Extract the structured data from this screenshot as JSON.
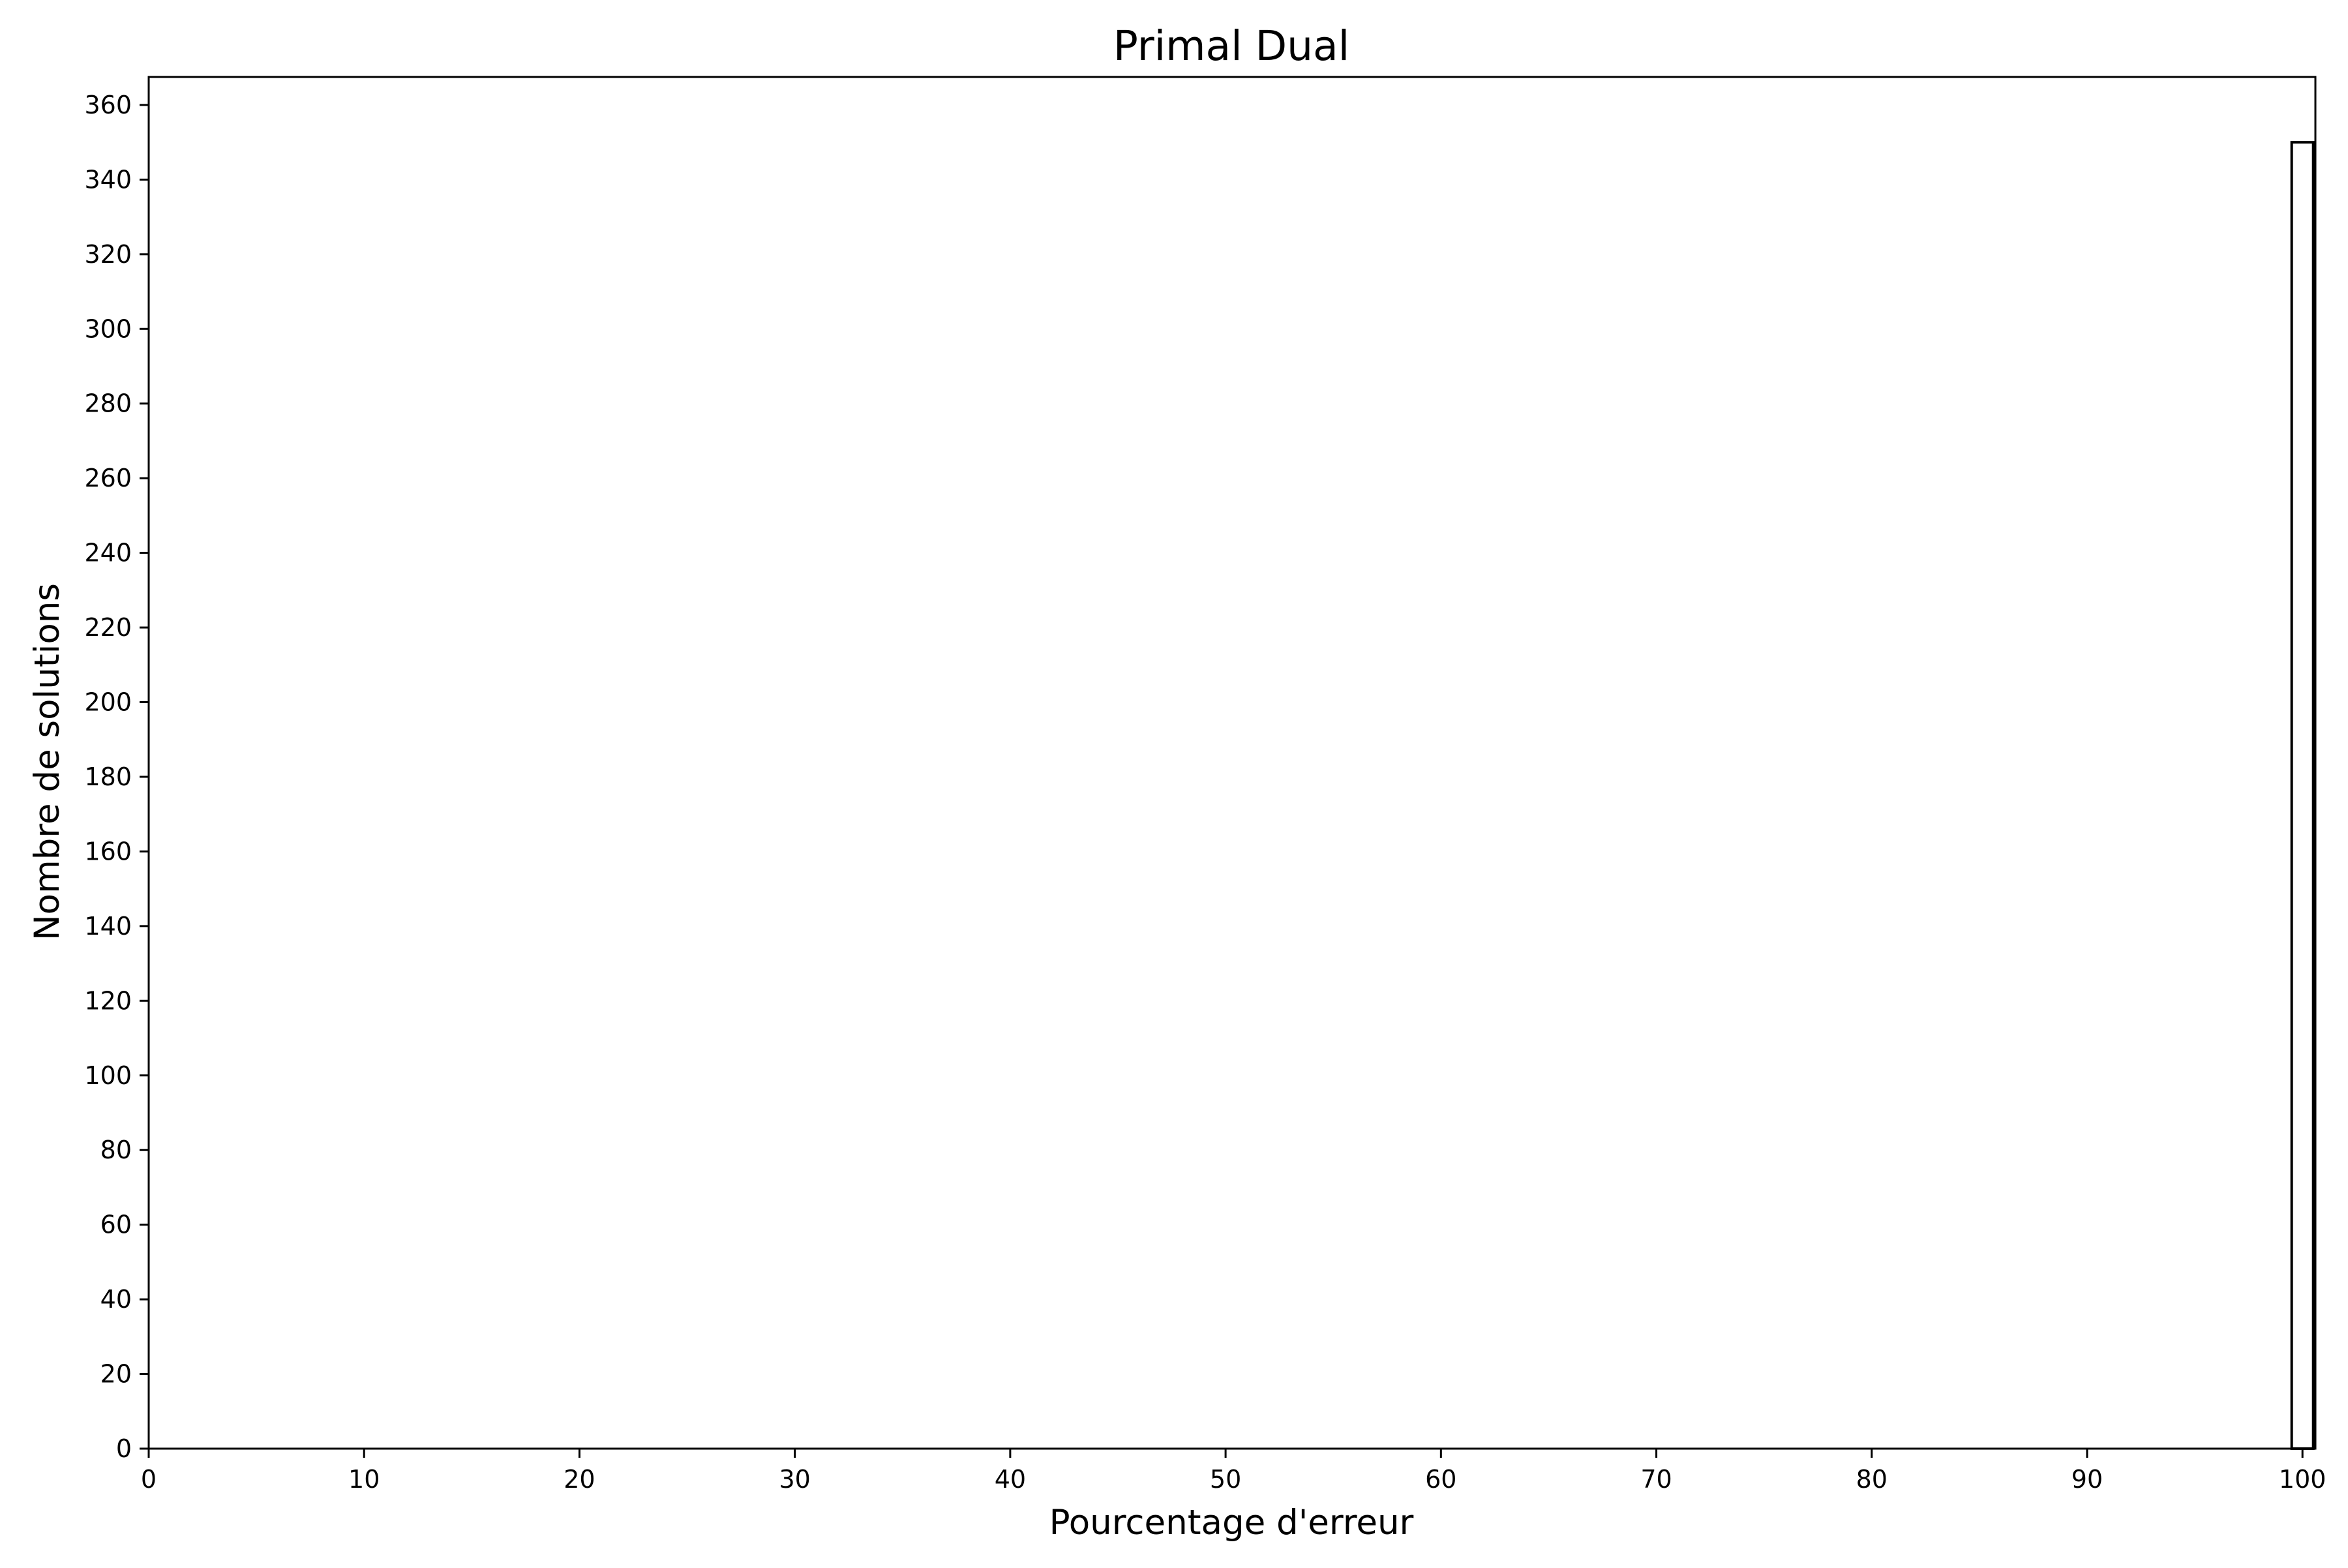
{
  "chart_data": {
    "type": "bar",
    "title": "Primal Dual",
    "xlabel": "Pourcentage d'erreur",
    "ylabel": "Nombre de solutions",
    "xlim": [
      0,
      100.6
    ],
    "ylim": [
      0,
      367.5
    ],
    "x_ticks": [
      0,
      10,
      20,
      30,
      40,
      50,
      60,
      70,
      80,
      90,
      100
    ],
    "y_ticks": [
      0,
      20,
      40,
      60,
      80,
      100,
      120,
      140,
      160,
      180,
      200,
      220,
      240,
      260,
      280,
      300,
      320,
      340,
      360
    ],
    "bars": [
      {
        "x_start": 99.5,
        "x_end": 100.5,
        "value": 350
      }
    ],
    "grid": false,
    "bar_fill": "#ffffff",
    "bar_edge": "#000000"
  }
}
